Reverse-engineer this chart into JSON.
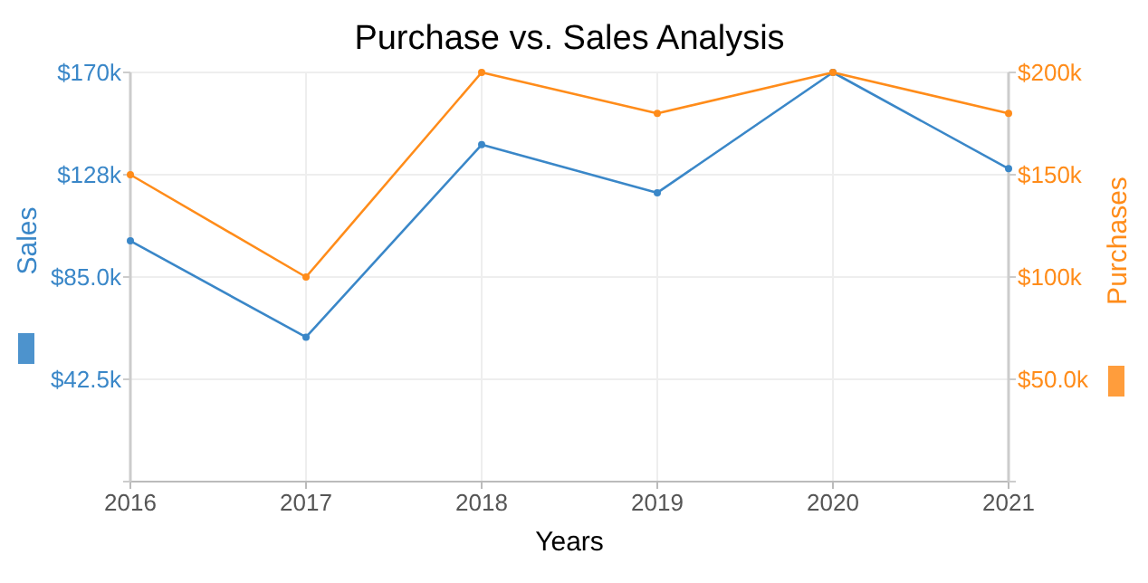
{
  "chart_data": {
    "type": "line",
    "title": "Purchase vs. Sales Analysis",
    "xlabel": "Years",
    "ylabel": "Sales",
    "y2label": "Purchases",
    "x": [
      2016,
      2017,
      2018,
      2019,
      2020,
      2021
    ],
    "series": [
      {
        "color": "#3a87c8",
        "values": [
          100000,
          60000,
          140000,
          120000,
          170000,
          130000
        ]
      },
      {
        "color": "#ff8c1a",
        "axis": "y2",
        "values": [
          150000,
          100000,
          200000,
          180000,
          200000,
          180000
        ]
      }
    ],
    "xlim": [
      2016,
      2021
    ],
    "xticks": [
      2016,
      2017,
      2018,
      2019,
      2020,
      2021
    ],
    "ylim": [
      0,
      170000
    ],
    "yticks": [
      {
        "value": 0,
        "label": null
      },
      {
        "value": 42500,
        "label": "$42.5k"
      },
      {
        "value": 85000,
        "label": "$85.0k"
      },
      {
        "value": 127500,
        "label": "$128k"
      },
      {
        "value": 170000,
        "label": "$170k"
      }
    ],
    "y2lim": [
      0,
      200000
    ],
    "y2ticks": [
      {
        "value": 0,
        "label": null
      },
      {
        "value": 50000,
        "label": "$50.0k"
      },
      {
        "value": 100000,
        "label": "$100k"
      },
      {
        "value": 150000,
        "label": "$150k"
      },
      {
        "value": 200000,
        "label": "$200k"
      }
    ],
    "grid": true,
    "marker": "circle",
    "line_style": "solid"
  }
}
